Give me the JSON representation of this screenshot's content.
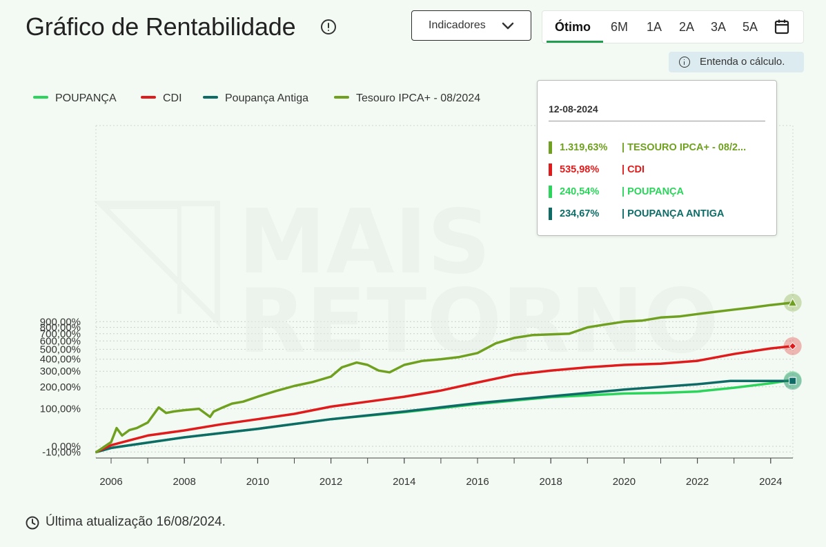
{
  "header": {
    "title": "Gráfico de Rentabilidade",
    "indicators_label": "Indicadores",
    "periods": [
      "Ótimo",
      "6M",
      "1A",
      "2A",
      "3A",
      "5A"
    ],
    "active_period": "Ótimo",
    "calc_link": "Entenda o cálculo."
  },
  "tooltip": {
    "date": "12-08-2024",
    "rows": [
      {
        "value": "1.319,63%",
        "name": "| TESOURO IPCA+ - 08/2...",
        "color": "#6fa020"
      },
      {
        "value": "535,98%",
        "name": "| CDI",
        "color": "#e01b1b"
      },
      {
        "value": "240,54%",
        "name": "| POUPANÇA",
        "color": "#2bd45a"
      },
      {
        "value": "234,67%",
        "name": "| POUPANÇA ANTIGA",
        "color": "#0e6b66"
      }
    ]
  },
  "footer": {
    "last_update": "Última atualização 16/08/2024."
  },
  "watermark": "MAIS RETORNO",
  "chart_data": {
    "type": "line",
    "y_scale": "log",
    "x_ticks": [
      "2006",
      "2008",
      "2010",
      "2012",
      "2014",
      "2016",
      "2018",
      "2020",
      "2022",
      "2024"
    ],
    "y_ticks": [
      {
        "label": "-10,00%",
        "value": -10
      },
      {
        "label": "0,00%",
        "value": 0
      },
      {
        "label": "100,00%",
        "value": 100
      },
      {
        "label": "200,00%",
        "value": 200
      },
      {
        "label": "300,00%",
        "value": 300
      },
      {
        "label": "400,00%",
        "value": 400
      },
      {
        "label": "500,00%",
        "value": 500
      },
      {
        "label": "600,00%",
        "value": 600
      },
      {
        "label": "700,00%",
        "value": 700
      },
      {
        "label": "800,00%",
        "value": 800
      },
      {
        "label": "900,00%",
        "value": 900
      }
    ],
    "legend": [
      "POUPANÇA",
      "CDI",
      "Poupança Antiga",
      "Tesouro IPCA+ - 08/2024"
    ],
    "series": [
      {
        "name": "POUPANÇA",
        "color": "#2bd45a",
        "x": [
          2005.6,
          2006,
          2008,
          2010,
          2012,
          2014,
          2016,
          2018,
          2020,
          2021,
          2022,
          2023,
          2024,
          2024.6
        ],
        "y": [
          -10,
          -3,
          18,
          38,
          65,
          88,
          118,
          148,
          165,
          168,
          175,
          195,
          220,
          240.54
        ]
      },
      {
        "name": "Poupança Antiga",
        "color": "#0e6b66",
        "x": [
          2005.6,
          2006,
          2008,
          2010,
          2012,
          2014,
          2016,
          2018,
          2020,
          2022,
          2022.9,
          2024,
          2024.6
        ],
        "y": [
          -10,
          -3,
          18,
          38,
          65,
          90,
          122,
          152,
          185,
          215,
          234.67,
          234.67,
          234.67
        ]
      },
      {
        "name": "CDI",
        "color": "#e01b1b",
        "x": [
          2005.6,
          2006,
          2007,
          2008,
          2009,
          2010,
          2011,
          2012,
          2013,
          2014,
          2015,
          2016,
          2017,
          2018,
          2019,
          2020,
          2021,
          2022,
          2023,
          2024,
          2024.6
        ],
        "y": [
          -10,
          2,
          22,
          34,
          50,
          65,
          82,
          108,
          128,
          150,
          180,
          225,
          275,
          305,
          330,
          350,
          360,
          385,
          450,
          510,
          535.98
        ]
      },
      {
        "name": "Tesouro IPCA+ - 08/2024",
        "color": "#6fa020",
        "x": [
          2005.6,
          2006,
          2006.15,
          2006.3,
          2006.5,
          2006.7,
          2007,
          2007.3,
          2007.5,
          2007.7,
          2008,
          2008.4,
          2008.7,
          2008.8,
          2009,
          2009.3,
          2009.6,
          2010,
          2010.5,
          2011,
          2011.5,
          2012,
          2012.3,
          2012.7,
          2013,
          2013.3,
          2013.6,
          2014,
          2014.5,
          2015,
          2015.5,
          2016,
          2016.5,
          2017,
          2017.5,
          2018,
          2018.5,
          2019,
          2019.5,
          2020,
          2020.5,
          2021,
          2021.5,
          2022,
          2022.5,
          2023,
          2023.5,
          2024,
          2024.6
        ],
        "y": [
          -10,
          8,
          40,
          22,
          35,
          40,
          55,
          105,
          85,
          90,
          95,
          100,
          72,
          90,
          102,
          120,
          128,
          150,
          178,
          205,
          228,
          262,
          330,
          370,
          350,
          305,
          292,
          350,
          385,
          400,
          420,
          460,
          570,
          640,
          680,
          690,
          700,
          800,
          850,
          900,
          920,
          980,
          1000,
          1050,
          1100,
          1150,
          1200,
          1260,
          1319.63
        ]
      }
    ],
    "highlight_date": "12-08-2024"
  }
}
